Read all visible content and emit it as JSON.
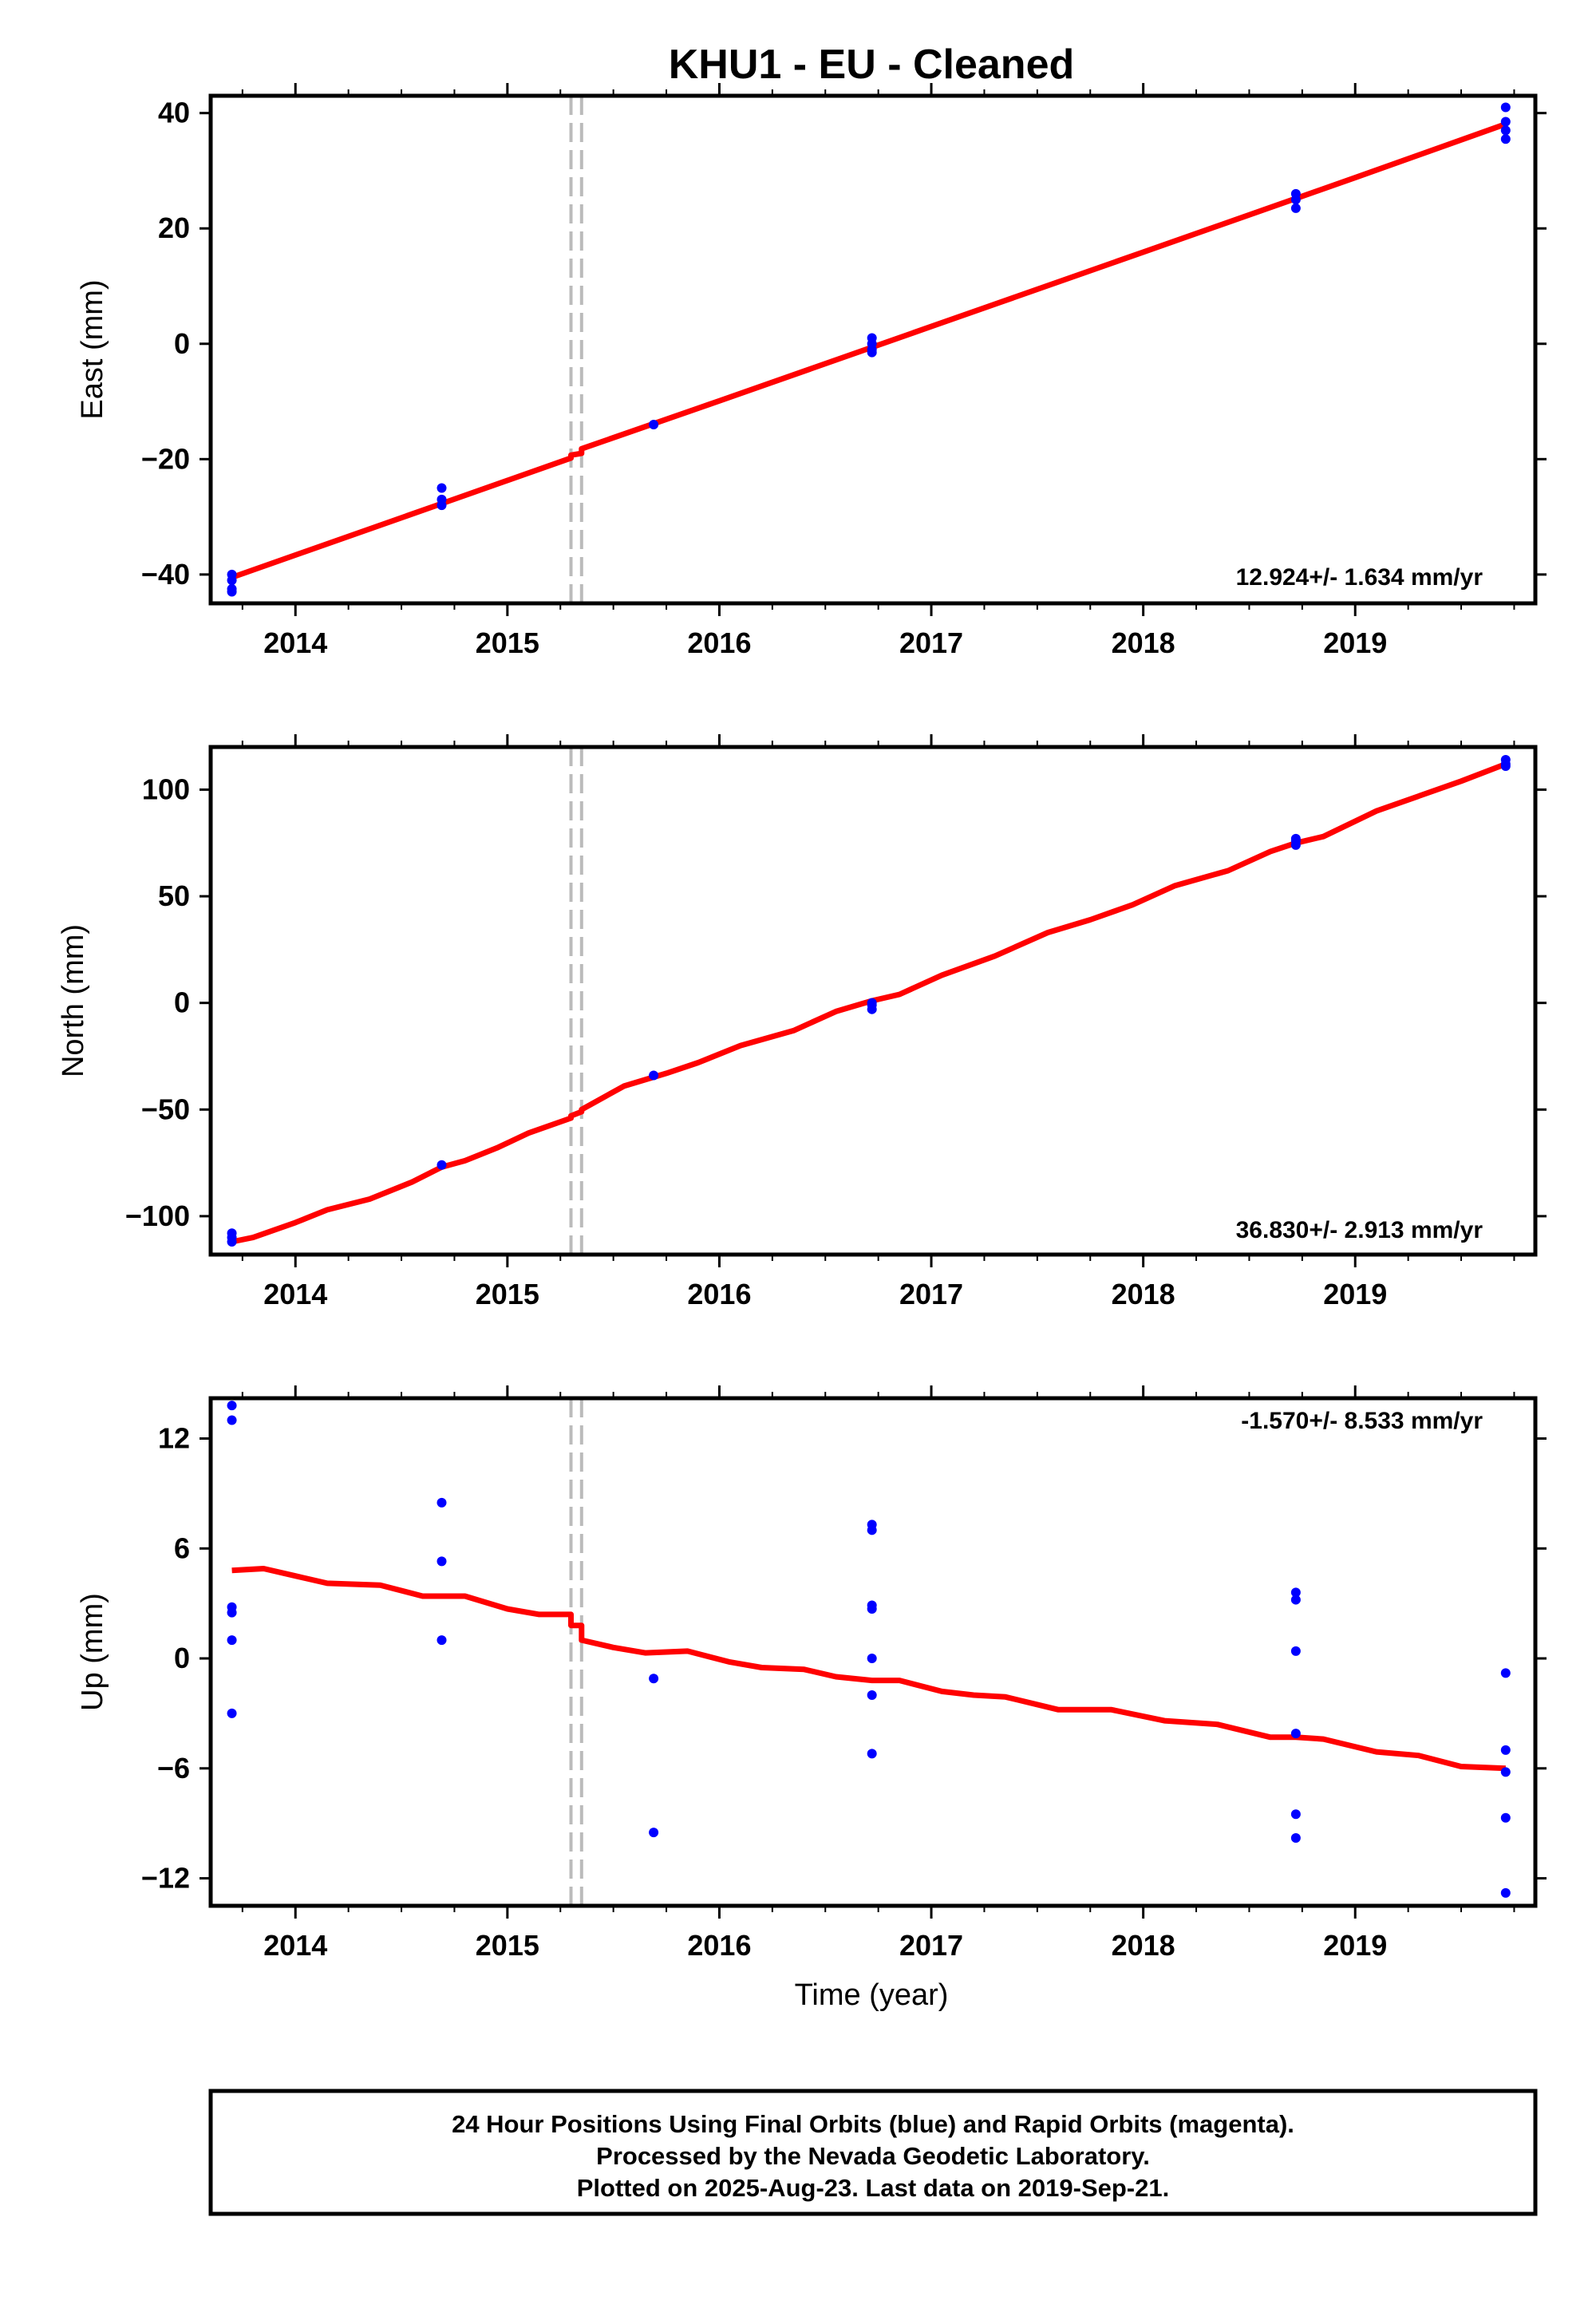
{
  "title": "KHU1  - EU - Cleaned",
  "colors": {
    "final_points": "#0000ff",
    "model_line": "#ff0000",
    "offset_lines": "#bbbbbb",
    "frame": "#000000"
  },
  "xlabel": "Time (year)",
  "footer": {
    "line1": "24 Hour Positions Using Final Orbits (blue) and Rapid Orbits (magenta).",
    "line2": "Processed by the Nevada Geodetic Laboratory.",
    "line3": "Plotted on 2025-Aug-23. Last data on 2019-Sep-21."
  },
  "chart_data": [
    {
      "type": "scatter",
      "ylabel": "East (mm)",
      "rate": "12.924+/- 1.634 mm/yr",
      "xlim": [
        2013.6,
        2019.85
      ],
      "ylim": [
        -45,
        43
      ],
      "yticks": [
        -40,
        -20,
        0,
        20,
        40
      ],
      "xticks": [
        2014,
        2015,
        2016,
        2017,
        2018,
        2019
      ],
      "offsets": [
        2015.3,
        2015.35
      ],
      "points": [
        [
          2013.7,
          -40
        ],
        [
          2013.7,
          -41
        ],
        [
          2013.7,
          -42.5
        ],
        [
          2013.7,
          -43
        ],
        [
          2014.69,
          -25
        ],
        [
          2014.69,
          -27
        ],
        [
          2014.69,
          -28
        ],
        [
          2015.69,
          -14
        ],
        [
          2016.72,
          1
        ],
        [
          2016.72,
          0
        ],
        [
          2016.72,
          -1
        ],
        [
          2016.72,
          -1.5
        ],
        [
          2018.72,
          26
        ],
        [
          2018.72,
          25
        ],
        [
          2018.72,
          23.5
        ],
        [
          2019.71,
          41
        ],
        [
          2019.71,
          38.5
        ],
        [
          2019.71,
          37
        ],
        [
          2019.71,
          35.5
        ]
      ],
      "model": [
        [
          2013.7,
          -40.5
        ],
        [
          2014.69,
          -27.7
        ],
        [
          2015.3,
          -19.8
        ],
        [
          2015.3,
          -19.3
        ],
        [
          2015.35,
          -19.0
        ],
        [
          2015.35,
          -18.2
        ],
        [
          2016.0,
          -9.9
        ],
        [
          2017.0,
          3.0
        ],
        [
          2018.0,
          15.9
        ],
        [
          2019.0,
          28.8
        ],
        [
          2019.71,
          38.1
        ]
      ]
    },
    {
      "type": "scatter",
      "ylabel": "North (mm)",
      "rate": "36.830+/- 2.913 mm/yr",
      "xlim": [
        2013.6,
        2019.85
      ],
      "ylim": [
        -118,
        120
      ],
      "yticks": [
        -100,
        -50,
        0,
        50,
        100
      ],
      "xticks": [
        2014,
        2015,
        2016,
        2017,
        2018,
        2019
      ],
      "offsets": [
        2015.3,
        2015.35
      ],
      "points": [
        [
          2013.7,
          -108
        ],
        [
          2013.7,
          -110
        ],
        [
          2013.7,
          -112
        ],
        [
          2014.69,
          -76
        ],
        [
          2015.69,
          -34
        ],
        [
          2016.72,
          0
        ],
        [
          2016.72,
          -1
        ],
        [
          2016.72,
          -3
        ],
        [
          2018.72,
          77
        ],
        [
          2018.72,
          76
        ],
        [
          2018.72,
          74
        ],
        [
          2019.71,
          114
        ],
        [
          2019.71,
          112
        ],
        [
          2019.71,
          111
        ]
      ],
      "model": [
        [
          2013.7,
          -112
        ],
        [
          2013.8,
          -110
        ],
        [
          2014.0,
          -103
        ],
        [
          2014.15,
          -97
        ],
        [
          2014.35,
          -92
        ],
        [
          2014.55,
          -84
        ],
        [
          2014.69,
          -77
        ],
        [
          2014.8,
          -74
        ],
        [
          2014.95,
          -68
        ],
        [
          2015.1,
          -61
        ],
        [
          2015.3,
          -54
        ],
        [
          2015.3,
          -53
        ],
        [
          2015.35,
          -51
        ],
        [
          2015.35,
          -50
        ],
        [
          2015.55,
          -39
        ],
        [
          2015.75,
          -33
        ],
        [
          2015.9,
          -28
        ],
        [
          2016.1,
          -20
        ],
        [
          2016.35,
          -13
        ],
        [
          2016.55,
          -4
        ],
        [
          2016.72,
          1
        ],
        [
          2016.85,
          4
        ],
        [
          2017.05,
          13
        ],
        [
          2017.3,
          22
        ],
        [
          2017.55,
          33
        ],
        [
          2017.75,
          39
        ],
        [
          2017.95,
          46
        ],
        [
          2018.15,
          55
        ],
        [
          2018.4,
          62
        ],
        [
          2018.6,
          71
        ],
        [
          2018.72,
          75
        ],
        [
          2018.85,
          78
        ],
        [
          2019.1,
          90
        ],
        [
          2019.3,
          97
        ],
        [
          2019.5,
          104
        ],
        [
          2019.71,
          112
        ]
      ]
    },
    {
      "type": "scatter",
      "ylabel": "Up (mm)",
      "rate": "-1.570+/- 8.533 mm/yr",
      "xlim": [
        2013.6,
        2019.85
      ],
      "ylim": [
        -13.5,
        14.2
      ],
      "yticks": [
        -12,
        -6,
        0,
        6,
        12
      ],
      "xticks": [
        2014,
        2015,
        2016,
        2017,
        2018,
        2019
      ],
      "offsets": [
        2015.3,
        2015.35
      ],
      "points": [
        [
          2013.7,
          13.8
        ],
        [
          2013.7,
          13
        ],
        [
          2013.7,
          2.8
        ],
        [
          2013.7,
          2.5
        ],
        [
          2013.7,
          1
        ],
        [
          2013.7,
          -3
        ],
        [
          2014.69,
          8.5
        ],
        [
          2014.69,
          5.3
        ],
        [
          2014.69,
          1
        ],
        [
          2015.69,
          -1.1
        ],
        [
          2015.69,
          -9.5
        ],
        [
          2016.72,
          7.3
        ],
        [
          2016.72,
          7
        ],
        [
          2016.72,
          2.9
        ],
        [
          2016.72,
          2.7
        ],
        [
          2016.72,
          0
        ],
        [
          2016.72,
          -2
        ],
        [
          2016.72,
          -5.2
        ],
        [
          2018.72,
          3.6
        ],
        [
          2018.72,
          3.2
        ],
        [
          2018.72,
          0.4
        ],
        [
          2018.72,
          -4.1
        ],
        [
          2018.72,
          -8.5
        ],
        [
          2018.72,
          -9.8
        ],
        [
          2019.71,
          -0.8
        ],
        [
          2019.71,
          -5
        ],
        [
          2019.71,
          -6.2
        ],
        [
          2019.71,
          -8.7
        ],
        [
          2019.71,
          -12.8
        ]
      ],
      "model": [
        [
          2013.7,
          4.8
        ],
        [
          2013.85,
          4.9
        ],
        [
          2014.0,
          4.5
        ],
        [
          2014.15,
          4.1
        ],
        [
          2014.4,
          4.0
        ],
        [
          2014.6,
          3.4
        ],
        [
          2014.8,
          3.4
        ],
        [
          2015.0,
          2.7
        ],
        [
          2015.15,
          2.4
        ],
        [
          2015.3,
          2.4
        ],
        [
          2015.3,
          1.8
        ],
        [
          2015.35,
          1.8
        ],
        [
          2015.35,
          1.0
        ],
        [
          2015.5,
          0.6
        ],
        [
          2015.65,
          0.3
        ],
        [
          2015.85,
          0.4
        ],
        [
          2016.05,
          -0.2
        ],
        [
          2016.2,
          -0.5
        ],
        [
          2016.4,
          -0.6
        ],
        [
          2016.55,
          -1.0
        ],
        [
          2016.72,
          -1.2
        ],
        [
          2016.85,
          -1.2
        ],
        [
          2017.05,
          -1.8
        ],
        [
          2017.2,
          -2.0
        ],
        [
          2017.35,
          -2.1
        ],
        [
          2017.6,
          -2.8
        ],
        [
          2017.85,
          -2.8
        ],
        [
          2018.1,
          -3.4
        ],
        [
          2018.35,
          -3.6
        ],
        [
          2018.6,
          -4.3
        ],
        [
          2018.72,
          -4.3
        ],
        [
          2018.85,
          -4.4
        ],
        [
          2019.1,
          -5.1
        ],
        [
          2019.3,
          -5.3
        ],
        [
          2019.5,
          -5.9
        ],
        [
          2019.71,
          -6.0
        ]
      ]
    }
  ]
}
